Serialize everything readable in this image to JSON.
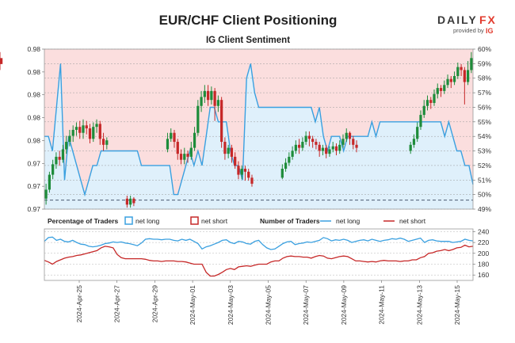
{
  "header": {
    "title": "EUR/CHF Client Positioning",
    "subtitle": "IG Client Sentiment",
    "logo_part1": "DAILY",
    "logo_part2": "FX",
    "logo_sub": "provided by",
    "logo_brand": "IG"
  },
  "colors": {
    "bull_candle": "#1e8c3a",
    "bear_candle": "#c62828",
    "net_long": "#3aa0e0",
    "net_short": "#c62828",
    "long_fill": "#dff0fb",
    "short_fill": "#fbdede",
    "accent_logo": "#e23b2e"
  },
  "chart_data": [
    {
      "type": "candlestick+area",
      "name": "price-sentiment",
      "left_axis_ticks": [
        "0.98",
        "0.98",
        "0.98",
        "0.98",
        "0.98",
        "0.97",
        "0.97",
        "0.97"
      ],
      "right_axis_ticks": [
        "60%",
        "59%",
        "58%",
        "57%",
        "56%",
        "55%",
        "54%",
        "53%",
        "52%",
        "51%",
        "50%",
        "49%"
      ],
      "pct_range": [
        49,
        60
      ],
      "price_range": [
        0.9715,
        0.9822
      ],
      "reference_level": 0.9721,
      "pct_long_line": [
        54,
        54,
        53,
        56,
        59,
        51,
        54,
        53,
        52,
        51,
        50,
        51,
        52,
        52,
        53,
        53,
        53,
        53,
        53,
        53,
        53,
        53,
        53,
        53,
        52,
        52,
        52,
        52,
        52,
        52,
        52,
        52,
        50,
        50,
        51,
        52,
        53,
        52,
        53,
        52,
        54,
        56,
        56,
        55,
        55,
        55,
        53,
        52,
        52,
        51,
        58,
        59,
        57,
        56,
        56,
        56,
        56,
        56,
        56,
        56,
        56,
        56,
        56,
        56,
        56,
        56,
        56,
        55,
        56,
        54,
        53,
        54,
        54,
        54,
        53,
        54,
        54,
        54,
        54,
        54,
        54,
        55,
        54,
        55,
        55,
        55,
        55,
        55,
        55,
        55,
        55,
        55,
        55,
        55,
        55,
        55,
        55,
        55,
        55,
        54,
        55,
        54,
        53,
        53,
        52,
        52,
        50.7
      ],
      "candles": [
        [
          0.9722,
          0.9728,
          0.9718,
          0.9732
        ],
        [
          0.9728,
          0.9738,
          0.9726,
          0.974
        ],
        [
          0.9738,
          0.9745,
          0.9735,
          0.9748
        ],
        [
          0.9745,
          0.975,
          0.9742,
          0.9753
        ],
        [
          0.975,
          0.9748,
          0.9744,
          0.9754
        ],
        [
          0.9748,
          0.9755,
          0.9746,
          0.9758
        ],
        [
          0.9755,
          0.976,
          0.9752,
          0.9764
        ],
        [
          0.976,
          0.9764,
          0.9757,
          0.9768
        ],
        [
          0.9764,
          0.9768,
          0.976,
          0.9771
        ],
        [
          0.9768,
          0.977,
          0.9764,
          0.9773
        ],
        [
          0.977,
          0.9766,
          0.9762,
          0.9774
        ],
        [
          0.9766,
          0.9771,
          0.9762,
          0.9775
        ],
        [
          0.9771,
          0.9769,
          0.9765,
          0.9774
        ],
        [
          0.9769,
          0.9762,
          0.9759,
          0.9772
        ],
        [
          0.9762,
          0.977,
          0.976,
          0.9773
        ],
        [
          0.977,
          0.9772,
          0.9766,
          0.9775
        ],
        [
          0.9772,
          0.9762,
          0.9758,
          0.9774
        ],
        [
          0.9762,
          0.9758,
          0.9754,
          0.9766
        ],
        [
          0.9758,
          0.9761,
          0.9755,
          0.9763
        ],
        [
          0.9722,
          0.9718,
          0.9716,
          0.9724
        ],
        [
          0.9718,
          0.9722,
          0.9716,
          0.9724
        ],
        [
          0.9722,
          0.9719,
          0.9717,
          0.9723
        ],
        [
          0.9755,
          0.9762,
          0.9753,
          0.9766
        ],
        [
          0.9762,
          0.9766,
          0.976,
          0.9769
        ],
        [
          0.9766,
          0.976,
          0.9756,
          0.9768
        ],
        [
          0.976,
          0.9752,
          0.9748,
          0.9762
        ],
        [
          0.9752,
          0.9748,
          0.9745,
          0.9755
        ],
        [
          0.9748,
          0.9752,
          0.9745,
          0.9756
        ],
        [
          0.9752,
          0.975,
          0.9746,
          0.9754
        ],
        [
          0.975,
          0.9756,
          0.9748,
          0.976
        ],
        [
          0.9756,
          0.9766,
          0.9754,
          0.977
        ],
        [
          0.9766,
          0.9784,
          0.9764,
          0.9788
        ],
        [
          0.9784,
          0.979,
          0.978,
          0.9794
        ],
        [
          0.979,
          0.9794,
          0.9786,
          0.9798
        ],
        [
          0.9794,
          0.9788,
          0.9784,
          0.9798
        ],
        [
          0.9788,
          0.9794,
          0.9785,
          0.9797
        ],
        [
          0.9794,
          0.9784,
          0.9774,
          0.9796
        ],
        [
          0.9784,
          0.9788,
          0.978,
          0.9791
        ],
        [
          0.9788,
          0.976,
          0.9756,
          0.979
        ],
        [
          0.976,
          0.9752,
          0.9748,
          0.9763
        ],
        [
          0.9752,
          0.9756,
          0.9749,
          0.9758
        ],
        [
          0.9756,
          0.975,
          0.9746,
          0.9758
        ],
        [
          0.975,
          0.9744,
          0.9742,
          0.9753
        ],
        [
          0.9744,
          0.9738,
          0.9735,
          0.9747
        ],
        [
          0.9738,
          0.9742,
          0.9735,
          0.9744
        ],
        [
          0.9742,
          0.974,
          0.9734,
          0.9744
        ],
        [
          0.974,
          0.9736,
          0.9734,
          0.9742
        ],
        [
          0.9736,
          0.9732,
          0.973,
          0.9738
        ],
        [
          0.9736,
          0.9742,
          0.9735,
          0.9745
        ],
        [
          0.9742,
          0.9746,
          0.974,
          0.9749
        ],
        [
          0.9746,
          0.975,
          0.9744,
          0.9753
        ],
        [
          0.975,
          0.9754,
          0.9748,
          0.9757
        ],
        [
          0.9754,
          0.9758,
          0.9752,
          0.9761
        ],
        [
          0.9758,
          0.9756,
          0.9752,
          0.9762
        ],
        [
          0.9756,
          0.976,
          0.9754,
          0.9763
        ],
        [
          0.976,
          0.9764,
          0.9758,
          0.9767
        ],
        [
          0.9764,
          0.9762,
          0.9757,
          0.9767
        ],
        [
          0.9762,
          0.976,
          0.9756,
          0.9764
        ],
        [
          0.976,
          0.9758,
          0.9755,
          0.9762
        ],
        [
          0.9758,
          0.9754,
          0.975,
          0.976
        ],
        [
          0.9754,
          0.9756,
          0.9751,
          0.9758
        ],
        [
          0.9756,
          0.9752,
          0.9749,
          0.9758
        ],
        [
          0.9752,
          0.9755,
          0.975,
          0.9757
        ],
        [
          0.9755,
          0.9757,
          0.9753,
          0.976
        ],
        [
          0.9757,
          0.9754,
          0.9751,
          0.9759
        ],
        [
          0.9754,
          0.9758,
          0.9752,
          0.9761
        ],
        [
          0.9758,
          0.9762,
          0.9756,
          0.9765
        ],
        [
          0.9762,
          0.9766,
          0.976,
          0.9769
        ],
        [
          0.9766,
          0.9762,
          0.9758,
          0.9767
        ],
        [
          0.9762,
          0.9758,
          0.9755,
          0.9764
        ],
        [
          0.9758,
          0.9756,
          0.9753,
          0.9761
        ],
        [
          0.9754,
          0.9758,
          0.9752,
          0.976
        ],
        [
          0.9758,
          0.9762,
          0.9756,
          0.9765
        ],
        [
          0.9762,
          0.977,
          0.976,
          0.9773
        ],
        [
          0.977,
          0.9778,
          0.9768,
          0.9781
        ],
        [
          0.9778,
          0.9784,
          0.9776,
          0.9788
        ],
        [
          0.9784,
          0.9788,
          0.9781,
          0.9791
        ],
        [
          0.9788,
          0.9786,
          0.9782,
          0.979
        ],
        [
          0.9786,
          0.9792,
          0.9784,
          0.9795
        ],
        [
          0.9792,
          0.9796,
          0.9789,
          0.9799
        ],
        [
          0.9796,
          0.9794,
          0.979,
          0.9798
        ],
        [
          0.9794,
          0.9798,
          0.9792,
          0.9801
        ],
        [
          0.9798,
          0.9802,
          0.9796,
          0.9805
        ],
        [
          0.9802,
          0.98,
          0.9796,
          0.9804
        ],
        [
          0.98,
          0.9804,
          0.9798,
          0.9807
        ],
        [
          0.9804,
          0.981,
          0.9802,
          0.9813
        ],
        [
          0.981,
          0.9808,
          0.9804,
          0.9812
        ],
        [
          0.9808,
          0.98,
          0.9785,
          0.981
        ],
        [
          0.98,
          0.9808,
          0.9798,
          0.9814
        ],
        [
          0.9808,
          0.9816,
          0.9806,
          0.982
        ],
        [
          0.9816,
          0.9812,
          0.9808,
          0.982
        ]
      ],
      "candle_slots": [
        0,
        1,
        2,
        3,
        4,
        5,
        6,
        7,
        8,
        9,
        10,
        11,
        12,
        13,
        14,
        15,
        16,
        17,
        18,
        24,
        25,
        26,
        36,
        37,
        38,
        39,
        40,
        41,
        42,
        43,
        44,
        45,
        46,
        47,
        48,
        49,
        50,
        51,
        52,
        53,
        54,
        55,
        56,
        57,
        58,
        59,
        60,
        61,
        70,
        71,
        72,
        73,
        74,
        75,
        76,
        77,
        78,
        79,
        80,
        81,
        82,
        83,
        84,
        85,
        86,
        87,
        88,
        89,
        90,
        91,
        92,
        108,
        109,
        110,
        111,
        112,
        113,
        114,
        115,
        116,
        117,
        118,
        119,
        120,
        121,
        122,
        123,
        124,
        125,
        126
      ],
      "slot_count": 127
    },
    {
      "type": "line",
      "name": "number-of-traders",
      "y_ticks": [
        "240",
        "220",
        "200",
        "180",
        "160"
      ],
      "ylim": [
        150,
        245
      ],
      "x_tick_labels": [
        "2024-Apr-25",
        "2024-Apr-27",
        "2024-Apr-29",
        "2024-May-01",
        "2024-May-03",
        "2024-May-05",
        "2024-May-07",
        "2024-May-09",
        "2024-May-11",
        "2024-May-13",
        "2024-May-15"
      ],
      "series": [
        {
          "name": "net long",
          "values": [
            222,
            229,
            230,
            224,
            226,
            222,
            221,
            224,
            220,
            217,
            216,
            213,
            212,
            213,
            215,
            218,
            219,
            221,
            220,
            221,
            219,
            218,
            216,
            214,
            219,
            226,
            227,
            226,
            226,
            225,
            226,
            226,
            224,
            223,
            226,
            224,
            226,
            222,
            218,
            208,
            212,
            214,
            217,
            220,
            224,
            225,
            220,
            218,
            222,
            221,
            218,
            217,
            222,
            224,
            216,
            210,
            207,
            208,
            213,
            218,
            221,
            222,
            216,
            218,
            219,
            221,
            220,
            222,
            224,
            229,
            227,
            223,
            225,
            224,
            226,
            224,
            220,
            222,
            224,
            225,
            223,
            226,
            224,
            222,
            224,
            225,
            227,
            226,
            228,
            226,
            222,
            224,
            226,
            228,
            220,
            224,
            225,
            223,
            222,
            222,
            222,
            220,
            221,
            222,
            226,
            224,
            223
          ]
        },
        {
          "name": "net short",
          "values": [
            187,
            184,
            180,
            185,
            188,
            191,
            193,
            194,
            196,
            197,
            199,
            201,
            203,
            205,
            210,
            213,
            212,
            210,
            198,
            192,
            190,
            190,
            190,
            190,
            190,
            189,
            187,
            186,
            186,
            185,
            186,
            186,
            186,
            185,
            185,
            184,
            182,
            180,
            180,
            180,
            165,
            158,
            158,
            161,
            165,
            170,
            172,
            170,
            175,
            176,
            177,
            176,
            178,
            180,
            180,
            180,
            184,
            186,
            186,
            191,
            194,
            195,
            194,
            194,
            193,
            193,
            191,
            194,
            196,
            195,
            191,
            190,
            192,
            194,
            195,
            194,
            190,
            186,
            186,
            185,
            184,
            185,
            184,
            186,
            187,
            186,
            186,
            186,
            185,
            186,
            186,
            188,
            188,
            192,
            194,
            200,
            201,
            204,
            205,
            207,
            205,
            207,
            210,
            211,
            215,
            212,
            213
          ]
        }
      ]
    }
  ],
  "legend": {
    "pct_heading": "Percentage of Traders",
    "num_heading": "Number of Traders",
    "net_long": "net long",
    "net_short": "net short"
  }
}
